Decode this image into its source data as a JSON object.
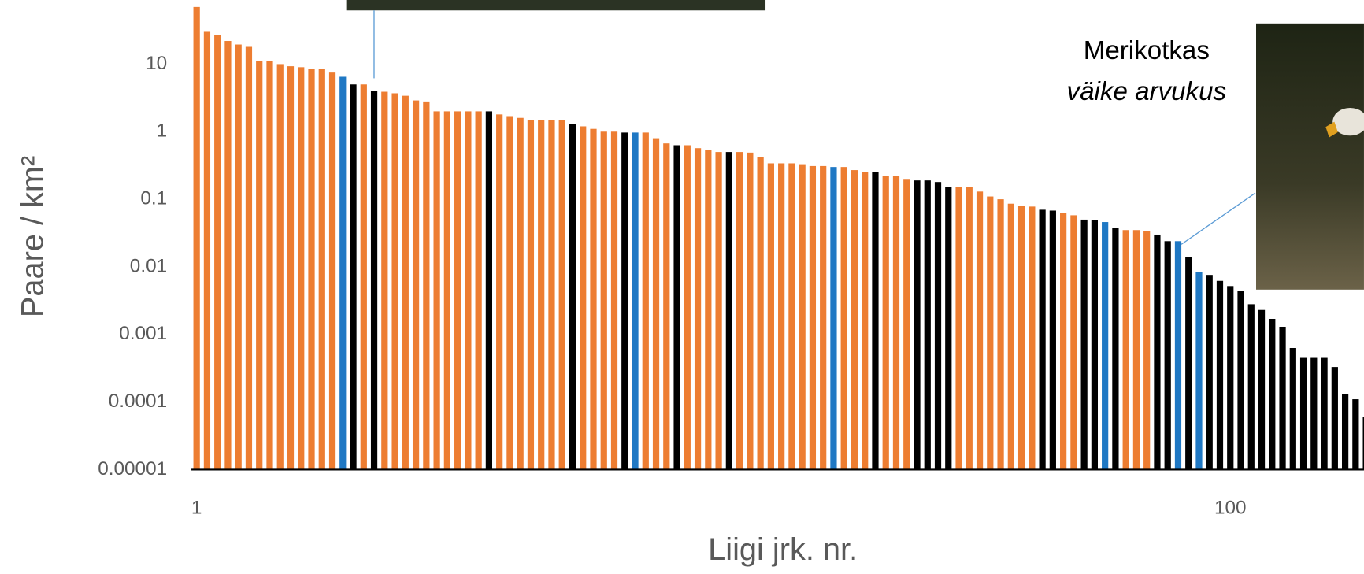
{
  "chart_data": {
    "type": "bar",
    "y_label": "Paare / km²",
    "x_label": "Liigi jrk. nr.",
    "annotations": [
      "Merikotkas",
      "väike arvukus"
    ],
    "log_y": true,
    "x": [
      1,
      2,
      3,
      4,
      5,
      6,
      7,
      8,
      9,
      10,
      11,
      12,
      13,
      14,
      15,
      16,
      17,
      18,
      19,
      20,
      21,
      22,
      23,
      24,
      25,
      26,
      27,
      28,
      29,
      30,
      31,
      32,
      33,
      34,
      35,
      36,
      37,
      38,
      39,
      40,
      41,
      42,
      43,
      44,
      45,
      46,
      47,
      48,
      49,
      50,
      51,
      52,
      53,
      54,
      55,
      56,
      57,
      58,
      59,
      60,
      61,
      62,
      63,
      64,
      65,
      66,
      67,
      68,
      69,
      70,
      71,
      72,
      73,
      74,
      75,
      76,
      77,
      78,
      79,
      80,
      81,
      82,
      83,
      84,
      85,
      86,
      87,
      88,
      89,
      90,
      91,
      92,
      93,
      94,
      95,
      96,
      97,
      98,
      99,
      100,
      101,
      102,
      103,
      104,
      105,
      106,
      107,
      108,
      109,
      110,
      111,
      112,
      113
    ],
    "values": [
      70,
      30,
      27,
      22,
      19.5,
      18,
      11,
      11,
      10,
      9.3,
      9,
      8.5,
      8.5,
      7.5,
      6.5,
      5,
      5,
      4,
      3.9,
      3.7,
      3.4,
      2.9,
      2.8,
      2,
      2,
      2,
      2,
      2,
      2,
      1.8,
      1.7,
      1.6,
      1.5,
      1.5,
      1.5,
      1.5,
      1.3,
      1.2,
      1.1,
      1,
      1,
      0.97,
      0.97,
      0.97,
      0.8,
      0.67,
      0.63,
      0.63,
      0.57,
      0.53,
      0.5,
      0.5,
      0.5,
      0.49,
      0.42,
      0.34,
      0.34,
      0.34,
      0.33,
      0.31,
      0.31,
      0.3,
      0.3,
      0.27,
      0.25,
      0.25,
      0.22,
      0.22,
      0.2,
      0.19,
      0.19,
      0.18,
      0.15,
      0.15,
      0.15,
      0.13,
      0.11,
      0.1,
      0.086,
      0.08,
      0.078,
      0.07,
      0.068,
      0.063,
      0.058,
      0.05,
      0.049,
      0.046,
      0.038,
      0.035,
      0.035,
      0.034,
      0.03,
      0.024,
      0.024,
      0.014,
      0.0085,
      0.0076,
      0.0062,
      0.0052,
      0.0044,
      0.0028,
      0.0023,
      0.0017,
      0.0013,
      0.00063,
      0.00045,
      0.00045,
      0.00045,
      0.00033,
      0.00013,
      0.00011,
      6e-05
    ],
    "colors": [
      "#ED7D31",
      "#ED7D31",
      "#ED7D31",
      "#ED7D31",
      "#ED7D31",
      "#ED7D31",
      "#ED7D31",
      "#ED7D31",
      "#ED7D31",
      "#ED7D31",
      "#ED7D31",
      "#ED7D31",
      "#ED7D31",
      "#ED7D31",
      "#1F78C4",
      "#000000",
      "#ED7D31",
      "#000000",
      "#ED7D31",
      "#ED7D31",
      "#ED7D31",
      "#ED7D31",
      "#ED7D31",
      "#ED7D31",
      "#ED7D31",
      "#ED7D31",
      "#ED7D31",
      "#ED7D31",
      "#000000",
      "#ED7D31",
      "#ED7D31",
      "#ED7D31",
      "#ED7D31",
      "#ED7D31",
      "#ED7D31",
      "#ED7D31",
      "#000000",
      "#ED7D31",
      "#ED7D31",
      "#ED7D31",
      "#ED7D31",
      "#000000",
      "#1F78C4",
      "#ED7D31",
      "#ED7D31",
      "#ED7D31",
      "#000000",
      "#ED7D31",
      "#ED7D31",
      "#ED7D31",
      "#ED7D31",
      "#000000",
      "#ED7D31",
      "#ED7D31",
      "#ED7D31",
      "#ED7D31",
      "#ED7D31",
      "#ED7D31",
      "#ED7D31",
      "#ED7D31",
      "#ED7D31",
      "#1F78C4",
      "#ED7D31",
      "#ED7D31",
      "#ED7D31",
      "#000000",
      "#ED7D31",
      "#ED7D31",
      "#ED7D31",
      "#000000",
      "#000000",
      "#000000",
      "#000000",
      "#ED7D31",
      "#ED7D31",
      "#ED7D31",
      "#ED7D31",
      "#ED7D31",
      "#ED7D31",
      "#ED7D31",
      "#ED7D31",
      "#000000",
      "#000000",
      "#ED7D31",
      "#ED7D31",
      "#000000",
      "#000000",
      "#1F78C4",
      "#000000",
      "#ED7D31",
      "#ED7D31",
      "#ED7D31",
      "#000000",
      "#000000",
      "#1F78C4",
      "#000000",
      "#1F78C4",
      "#000000",
      "#000000",
      "#000000",
      "#000000",
      "#000000",
      "#000000",
      "#000000",
      "#000000",
      "#000000",
      "#000000",
      "#000000",
      "#000000",
      "#000000",
      "#000000",
      "#000000",
      "#000000"
    ],
    "xlim": [
      0.5,
      112.8
    ],
    "xticks": [
      1,
      100
    ],
    "ylim": [
      1e-05,
      100
    ],
    "yticks": [
      1e-05,
      0.0001,
      0.001,
      0.01,
      0.1,
      1,
      10
    ]
  }
}
